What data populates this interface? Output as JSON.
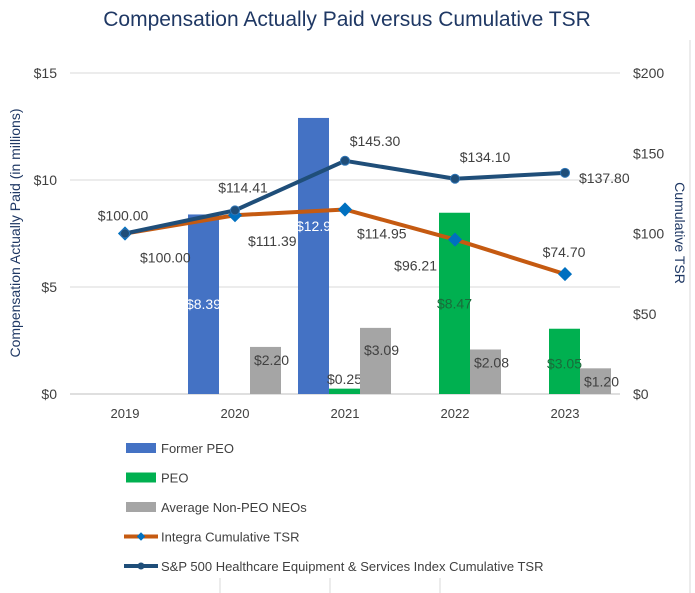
{
  "chart_data": {
    "type": "bar",
    "title": "Compensation Actually Paid versus Cumulative TSR",
    "ylabel": "Compensation Actually Paid (in millions)",
    "y2label": "Cumulative TSR",
    "categories": [
      "2019",
      "2020",
      "2021",
      "2022",
      "2023"
    ],
    "ylim": [
      0,
      15
    ],
    "yticks": [
      "$0",
      "$5",
      "$10",
      "$15"
    ],
    "y2lim": [
      0,
      200
    ],
    "y2ticks": [
      "$0",
      "$50",
      "$100",
      "$150",
      "$200"
    ],
    "grid": true,
    "legend_placement": "bottom",
    "bar_series": [
      {
        "name": "Former PEO",
        "color": "#4472C4",
        "values": [
          null,
          8.39,
          12.9,
          null,
          null
        ],
        "labels": [
          null,
          "$8.39",
          "$12.9",
          null,
          null
        ]
      },
      {
        "name": "PEO",
        "color": "#00B050",
        "values": [
          null,
          null,
          0.25,
          8.47,
          3.05
        ],
        "labels": [
          null,
          null,
          "$0.25",
          "$8.47",
          "$3.05"
        ]
      },
      {
        "name": "Average Non-PEO NEOs",
        "color": "#A5A5A5",
        "values": [
          null,
          2.2,
          3.09,
          2.08,
          1.2
        ],
        "labels": [
          null,
          "$2.20",
          "$3.09",
          "$2.08",
          "$1.20"
        ]
      }
    ],
    "line_series": [
      {
        "name": "Integra Cumulative TSR",
        "color": "#C55A11",
        "marker_color": "#0070C0",
        "marker": "diamond",
        "values": [
          100.0,
          111.39,
          114.95,
          96.21,
          74.7
        ],
        "labels": [
          "$100.00",
          "$111.39",
          "$114.95",
          "$96.21",
          "$74.70"
        ]
      },
      {
        "name": "S&P 500 Healthcare Equipment & Services Index Cumulative TSR",
        "color": "#1F4E79",
        "marker_color": "#1F4E79",
        "marker": "circle",
        "values": [
          100.0,
          114.41,
          145.3,
          134.1,
          137.8
        ],
        "labels": [
          "$100.00",
          "$114.41",
          "$145.30",
          "$134.10",
          "$137.80"
        ]
      }
    ]
  }
}
